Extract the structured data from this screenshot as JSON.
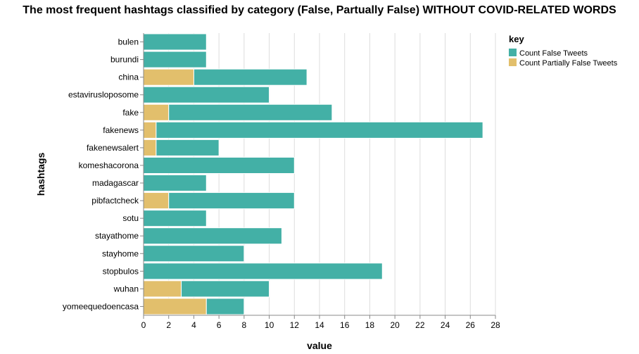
{
  "title": "The most frequent hashtags classified by category (False, Partually False) WITHOUT COVID-RELATED WORDS",
  "chart_data": {
    "type": "bar",
    "orientation": "horizontal",
    "stacked": true,
    "title": "The most frequent hashtags classified by category (False, Partually False) WITHOUT COVID-RELATED WORDS",
    "xlabel": "value",
    "ylabel": "hashtags",
    "xlim": [
      0,
      28
    ],
    "xticks": [
      0,
      2,
      4,
      6,
      8,
      10,
      12,
      14,
      16,
      18,
      20,
      22,
      24,
      26,
      28
    ],
    "grid": true,
    "legend": {
      "title": "key",
      "position": "right"
    },
    "categories": [
      "bulen",
      "burundi",
      "china",
      "estavirusloposome",
      "fake",
      "fakenews",
      "fakenewsalert",
      "komeshacorona",
      "madagascar",
      "pibfactcheck",
      "sotu",
      "stayathome",
      "stayhome",
      "stopbulos",
      "wuhan",
      "yomeequedoencasa"
    ],
    "series": [
      {
        "name": "Count False Tweets",
        "color": "#43b0a6",
        "values": [
          5,
          5,
          9,
          10,
          13,
          26,
          5,
          12,
          5,
          10,
          5,
          11,
          8,
          19,
          7,
          3
        ]
      },
      {
        "name": "Count Partially False Tweets",
        "color": "#e2bf6c",
        "values": [
          0,
          0,
          4,
          0,
          2,
          1,
          1,
          0,
          0,
          2,
          0,
          0,
          0,
          0,
          3,
          5
        ]
      }
    ],
    "stack_order_from_left": [
      "Count Partially False Tweets",
      "Count False Tweets"
    ]
  }
}
